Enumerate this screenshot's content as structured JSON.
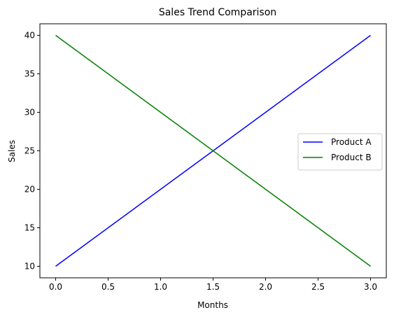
{
  "chart_data": {
    "type": "line",
    "title": "Sales Trend Comparison",
    "xlabel": "Months",
    "ylabel": "Sales",
    "xlim": [
      -0.15,
      3.15
    ],
    "ylim": [
      8.5,
      41.5
    ],
    "xticks": [
      0.0,
      0.5,
      1.0,
      1.5,
      2.0,
      2.5,
      3.0
    ],
    "xtick_labels": [
      "0.0",
      "0.5",
      "1.0",
      "1.5",
      "2.0",
      "2.5",
      "3.0"
    ],
    "yticks": [
      10,
      15,
      20,
      25,
      30,
      35,
      40
    ],
    "ytick_labels": [
      "10",
      "15",
      "20",
      "25",
      "30",
      "35",
      "40"
    ],
    "grid": false,
    "legend_position": "center-right",
    "series": [
      {
        "name": "Product A",
        "color": "#0000ff",
        "x": [
          0,
          3
        ],
        "y": [
          10,
          40
        ]
      },
      {
        "name": "Product B",
        "color": "#008000",
        "x": [
          0,
          3
        ],
        "y": [
          40,
          10
        ]
      }
    ]
  }
}
